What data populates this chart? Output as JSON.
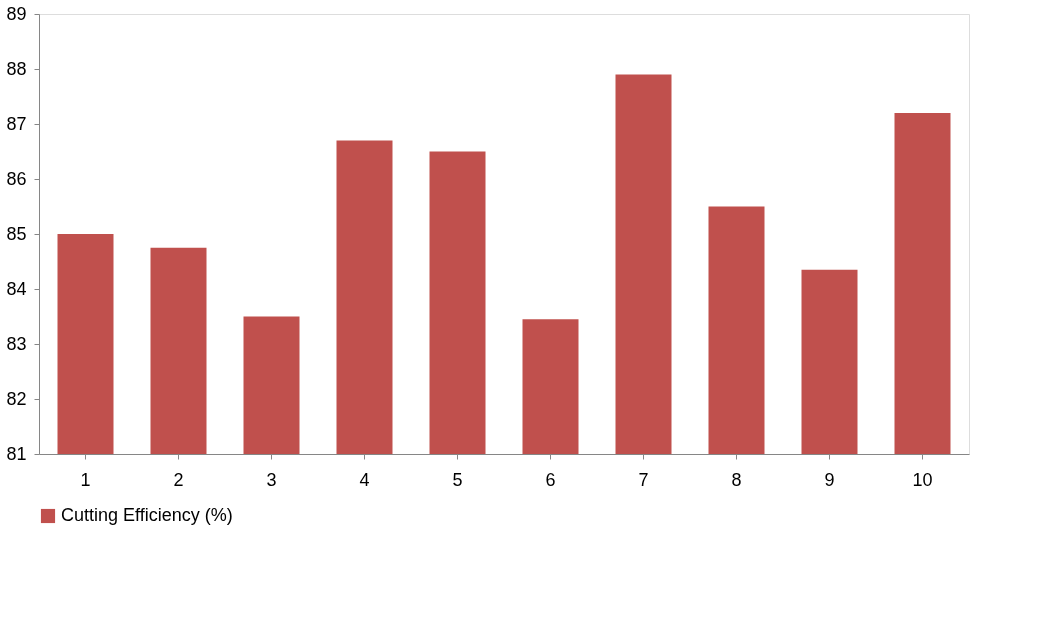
{
  "chart_data": {
    "type": "bar",
    "categories": [
      "1",
      "2",
      "3",
      "4",
      "5",
      "6",
      "7",
      "8",
      "9",
      "10"
    ],
    "series": [
      {
        "name": "Cutting Efficiency (%)",
        "color": "#c0504d",
        "values": [
          85.0,
          84.75,
          83.5,
          86.7,
          86.5,
          83.45,
          87.9,
          85.5,
          84.35,
          87.2
        ]
      }
    ],
    "ylim": [
      81,
      89
    ],
    "yticks": [
      81,
      82,
      83,
      84,
      85,
      86,
      87,
      88,
      89
    ],
    "grid": false,
    "legend": "bottom"
  }
}
